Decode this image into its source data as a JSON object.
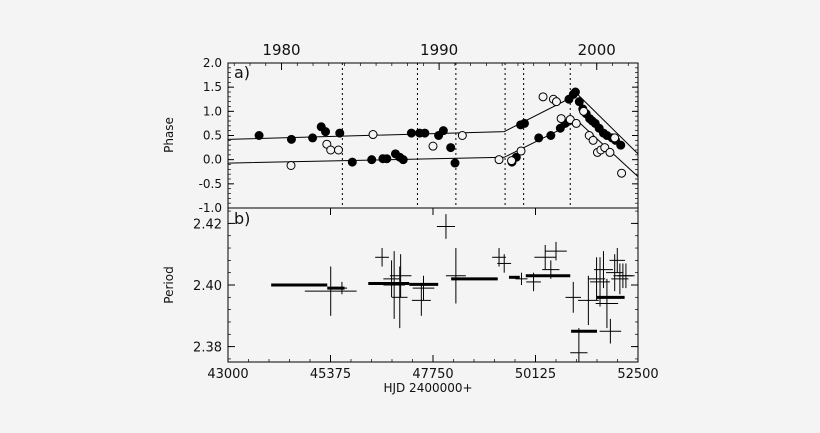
{
  "chart_data": [
    {
      "panel": "a",
      "type": "scatter",
      "panel_label": "a)",
      "ylabel": "Phase",
      "ylim": [
        -1.0,
        2.0
      ],
      "y_ticks": [
        "2.0",
        "1.5",
        "1.0",
        "0.5",
        "0.0",
        "-0.5",
        "-1.0"
      ],
      "y_tick_values": [
        2.0,
        1.5,
        1.0,
        0.5,
        0.0,
        -0.5,
        -1.0
      ],
      "x_top_ticks": [
        "1980",
        "1990",
        "2000"
      ],
      "x_top_tick_values": [
        44240,
        47892,
        51544
      ],
      "xlim": [
        43000,
        52500
      ],
      "vlines": [
        45650,
        47390,
        48280,
        49420,
        49850,
        50930
      ],
      "series": [
        {
          "marker": "filled-circle",
          "points": [
            [
              43720,
              0.5
            ],
            [
              44470,
              0.42
            ],
            [
              44960,
              0.45
            ],
            [
              45160,
              0.68
            ],
            [
              45260,
              0.58
            ],
            [
              45590,
              0.55
            ],
            [
              45880,
              -0.05
            ],
            [
              46330,
              0.0
            ],
            [
              46590,
              0.02
            ],
            [
              46680,
              0.02
            ],
            [
              46880,
              0.12
            ],
            [
              46980,
              0.05
            ],
            [
              47060,
              0.0
            ],
            [
              47250,
              0.55
            ],
            [
              47440,
              0.55
            ],
            [
              47560,
              0.55
            ],
            [
              47880,
              0.5
            ],
            [
              47990,
              0.6
            ],
            [
              48160,
              0.25
            ],
            [
              48260,
              -0.07
            ],
            [
              49580,
              -0.05
            ],
            [
              49680,
              0.05
            ],
            [
              49780,
              0.72
            ],
            [
              49870,
              0.75
            ],
            [
              50200,
              0.45
            ],
            [
              50480,
              0.5
            ],
            [
              50700,
              0.65
            ],
            [
              50810,
              0.75
            ],
            [
              50900,
              1.25
            ],
            [
              51000,
              1.35
            ],
            [
              51050,
              1.4
            ],
            [
              51140,
              1.2
            ],
            [
              51220,
              1.05
            ],
            [
              51300,
              0.95
            ],
            [
              51380,
              0.85
            ],
            [
              51440,
              0.8
            ],
            [
              51510,
              0.75
            ],
            [
              51600,
              0.65
            ],
            [
              51700,
              0.55
            ],
            [
              51780,
              0.5
            ],
            [
              51900,
              0.45
            ],
            [
              51980,
              0.4
            ],
            [
              52100,
              0.3
            ]
          ]
        },
        {
          "marker": "open-circle",
          "points": [
            [
              44460,
              -0.12
            ],
            [
              45290,
              0.32
            ],
            [
              45380,
              0.2
            ],
            [
              45560,
              0.2
            ],
            [
              46360,
              0.52
            ],
            [
              47750,
              0.28
            ],
            [
              48430,
              0.5
            ],
            [
              49280,
              0.0
            ],
            [
              49570,
              -0.02
            ],
            [
              49790,
              0.18
            ],
            [
              50300,
              1.3
            ],
            [
              50540,
              1.25
            ],
            [
              50610,
              1.2
            ],
            [
              50720,
              0.85
            ],
            [
              50930,
              0.83
            ],
            [
              51070,
              0.75
            ],
            [
              51240,
              1.0
            ],
            [
              51370,
              0.5
            ],
            [
              51460,
              0.4
            ],
            [
              51560,
              0.15
            ],
            [
              51640,
              0.2
            ],
            [
              51730,
              0.25
            ],
            [
              51850,
              0.15
            ],
            [
              51960,
              0.45
            ],
            [
              52120,
              -0.28
            ]
          ]
        }
      ],
      "fit_lines": [
        [
          [
            43000,
            0.42
          ],
          [
            49400,
            0.58
          ],
          [
            51100,
            1.35
          ],
          [
            52500,
            0.12
          ]
        ],
        [
          [
            43000,
            -0.07
          ],
          [
            49400,
            0.05
          ],
          [
            51100,
            0.8
          ],
          [
            52500,
            -0.35
          ]
        ]
      ]
    },
    {
      "panel": "b",
      "type": "scatter",
      "panel_label": "b)",
      "ylabel": "Period",
      "xlabel": "HJD 2400000+",
      "ylim": [
        2.375,
        2.425
      ],
      "y_ticks": [
        "2.42",
        "2.40",
        "2.38"
      ],
      "y_tick_values": [
        2.42,
        2.4,
        2.38
      ],
      "x_ticks": [
        "43000",
        "45375",
        "47750",
        "50125",
        "52500"
      ],
      "x_tick_values": [
        43000,
        45375,
        47750,
        50125,
        52500
      ],
      "xlim": [
        43000,
        52500
      ],
      "segments": [
        [
          44000,
          45300,
          2.4
        ],
        [
          45300,
          45700,
          2.399
        ],
        [
          46250,
          47200,
          2.4005
        ],
        [
          47200,
          47870,
          2.4002
        ],
        [
          48170,
          49250,
          2.402
        ],
        [
          49510,
          49760,
          2.4025
        ],
        [
          49900,
          50930,
          2.403
        ],
        [
          50950,
          51550,
          2.385
        ],
        [
          51550,
          52190,
          2.396
        ]
      ],
      "error_points": [
        [
          45380,
          2.398,
          600,
          0.008
        ],
        [
          45640,
          2.399,
          120,
          0.002
        ],
        [
          46570,
          2.409,
          160,
          0.003
        ],
        [
          46790,
          2.402,
          190,
          0.006
        ],
        [
          46850,
          2.4,
          250,
          0.011
        ],
        [
          46980,
          2.396,
          180,
          0.01
        ],
        [
          47000,
          2.403,
          250,
          0.007
        ],
        [
          47480,
          2.395,
          220,
          0.005
        ],
        [
          47530,
          2.399,
          250,
          0.004
        ],
        [
          48050,
          2.419,
          210,
          0.004
        ],
        [
          48280,
          2.403,
          230,
          0.009
        ],
        [
          49280,
          2.409,
          160,
          0.003
        ],
        [
          49400,
          2.407,
          160,
          0.003
        ],
        [
          49800,
          2.402,
          140,
          0.002
        ],
        [
          50080,
          2.401,
          170,
          0.003
        ],
        [
          50350,
          2.409,
          250,
          0.004
        ],
        [
          50480,
          2.405,
          200,
          0.003
        ],
        [
          50600,
          2.411,
          250,
          0.003
        ],
        [
          51000,
          2.396,
          180,
          0.005
        ],
        [
          51130,
          2.378,
          200,
          0.008
        ],
        [
          51350,
          2.395,
          240,
          0.008
        ],
        [
          51540,
          2.402,
          200,
          0.007
        ],
        [
          51620,
          2.401,
          230,
          0.008
        ],
        [
          51700,
          2.405,
          220,
          0.006
        ],
        [
          51780,
          2.394,
          260,
          0.008
        ],
        [
          51860,
          2.385,
          250,
          0.004
        ],
        [
          51960,
          2.404,
          200,
          0.006
        ],
        [
          52020,
          2.408,
          180,
          0.004
        ],
        [
          52080,
          2.402,
          200,
          0.005
        ],
        [
          52150,
          2.403,
          220,
          0.004
        ],
        [
          52220,
          2.403,
          200,
          0.004
        ]
      ]
    }
  ]
}
